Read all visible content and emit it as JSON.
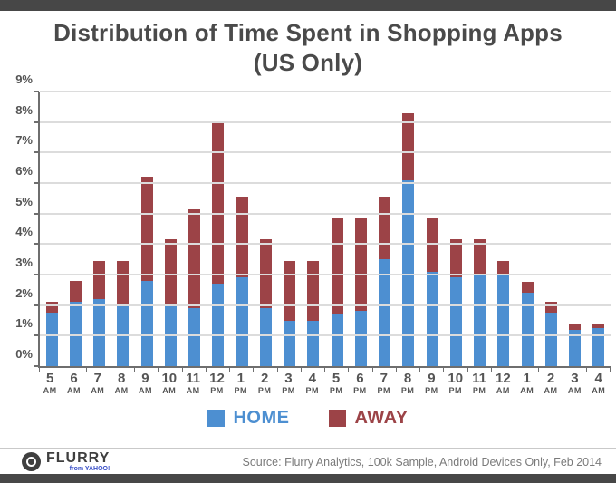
{
  "title": {
    "line1": "Distribution of Time Spent in Shopping Apps",
    "line2": "(US Only)"
  },
  "chart_data": {
    "type": "bar",
    "stacked": true,
    "categories": [
      "5 AM",
      "6 AM",
      "7 AM",
      "8 AM",
      "9 AM",
      "10 AM",
      "11 AM",
      "12 PM",
      "1 PM",
      "2 PM",
      "3 PM",
      "4 PM",
      "5 PM",
      "6 PM",
      "7 PM",
      "8 PM",
      "9 PM",
      "10 PM",
      "11 PM",
      "12 AM",
      "1 AM",
      "2 AM",
      "3 AM",
      "4 AM"
    ],
    "series": [
      {
        "name": "HOME",
        "color": "#4d8fd1",
        "values": [
          1.75,
          2.1,
          2.2,
          2.0,
          2.8,
          2.0,
          1.9,
          2.7,
          2.9,
          1.9,
          1.5,
          1.5,
          1.7,
          1.8,
          3.5,
          6.1,
          3.1,
          2.9,
          3.0,
          3.0,
          2.4,
          1.75,
          1.2,
          1.25
        ]
      },
      {
        "name": "AWAY",
        "color": "#9c4347",
        "values": [
          0.35,
          0.7,
          1.25,
          1.45,
          3.4,
          2.15,
          3.25,
          5.3,
          2.65,
          2.25,
          1.95,
          1.95,
          3.15,
          3.05,
          2.05,
          2.2,
          1.75,
          1.25,
          1.15,
          0.45,
          0.35,
          0.35,
          0.2,
          0.15
        ]
      }
    ],
    "title": "Distribution of Time Spent in Shopping Apps (US Only)",
    "xlabel": "",
    "ylabel": "",
    "ylim": [
      0,
      9
    ],
    "ytick_step": 1,
    "ytick_suffix": "%",
    "grid": true,
    "legend_position": "bottom"
  },
  "footer": {
    "brand": "FLURRY",
    "brand_sub": "from YAHOO!",
    "source": "Source: Flurry Analytics, 100k Sample, Android Devices Only, Feb 2014"
  },
  "colors": {
    "home": "#4d8fd1",
    "away": "#9c4347",
    "title_text": "#4a4a4a",
    "strip": "#474747",
    "gridline": "#dcdcdc",
    "axis": "#6e6e6e"
  }
}
